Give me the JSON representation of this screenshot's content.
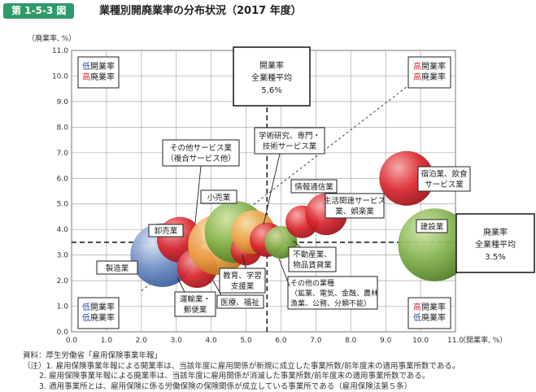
{
  "figure": {
    "number": "第 1-5-3 図",
    "title": "業種別開廃業率の分布状況（2017 年度）"
  },
  "colors": {
    "badge": "#2f9a6b",
    "grid": "#aaaaaa",
    "red": "#d9262d",
    "orange": "#eda64a",
    "green": "#7fb04a",
    "blue": "#6d8dc3",
    "quadrant_blue": "#1a4aa0",
    "quadrant_red": "#d7262c"
  },
  "chart_data": {
    "type": "scatter",
    "variant": "bubble",
    "xlabel": "（開業率, %）",
    "ylabel": "（廃業率, %）",
    "xlim": [
      0,
      11
    ],
    "ylim": [
      0,
      11
    ],
    "xticks": [
      "0.0",
      "1.0",
      "2.0",
      "3.0",
      "4.0",
      "5.0",
      "6.0",
      "7.0",
      "8.0",
      "9.0",
      "10.0",
      "11.0"
    ],
    "yticks": [
      "0.0",
      "1.0",
      "2.0",
      "3.0",
      "4.0",
      "5.0",
      "6.0",
      "7.0",
      "8.0",
      "9.0",
      "10.0",
      "11.0"
    ],
    "grid": true,
    "reference_lines": {
      "opening_avg": 5.6,
      "closing_avg": 3.5,
      "opening_label": [
        "開業率",
        "全業種平均",
        "5.6%"
      ],
      "closing_label": [
        "廃業率",
        "全業種平均",
        "3.5%"
      ]
    },
    "bubbles": [
      {
        "name": "製造業",
        "x": 2.6,
        "y": 3.0,
        "size": 7.0,
        "color": "blue"
      },
      {
        "name": "卸売業",
        "x": 3.1,
        "y": 3.6,
        "size": 5.0,
        "color": "red"
      },
      {
        "name": "運輸業・郵便業",
        "x": 3.6,
        "y": 2.5,
        "size": 4.4,
        "color": "red"
      },
      {
        "name": "医療、福祉",
        "x": 4.2,
        "y": 3.4,
        "size": 6.6,
        "color": "orange"
      },
      {
        "name": "小売業",
        "x": 4.7,
        "y": 3.9,
        "size": 6.8,
        "color": "green"
      },
      {
        "name": "教育、学習支援業",
        "x": 5.0,
        "y": 3.2,
        "size": 3.4,
        "color": "red"
      },
      {
        "name": "その他サービス業（複合サービス他）",
        "x": 5.2,
        "y": 3.9,
        "size": 4.8,
        "color": "orange"
      },
      {
        "name": "学術研究、専門・技術サービス業",
        "x": 5.6,
        "y": 3.6,
        "size": 3.8,
        "color": "red"
      },
      {
        "name": "不動産業、物品賃貸業",
        "x": 6.0,
        "y": 3.5,
        "size": 3.6,
        "color": "green"
      },
      {
        "name": "情報通信業",
        "x": 6.6,
        "y": 4.3,
        "size": 3.6,
        "color": "red"
      },
      {
        "name": "生活関連サービス業、娯楽業",
        "x": 7.3,
        "y": 4.6,
        "size": 4.6,
        "color": "red"
      },
      {
        "name": "宿泊業、飲食サービス業",
        "x": 9.6,
        "y": 6.0,
        "size": 6.0,
        "color": "red"
      },
      {
        "name": "建設業",
        "x": 10.4,
        "y": 3.4,
        "size": 8.0,
        "color": "green"
      }
    ],
    "bubble_labels": {
      "manufacturing": "製造業",
      "wholesale": [
        "卸売業"
      ],
      "transport": [
        "運輸業・",
        "郵便業"
      ],
      "medical": [
        "医療、福祉"
      ],
      "retail": [
        "小売業"
      ],
      "education": [
        "教育、学習",
        "支援業"
      ],
      "other_service": [
        "その他サービス業",
        "（複合サービス他）"
      ],
      "academic": [
        "学術研究、専門・",
        "技術サービス業"
      ],
      "realestate": [
        "不動産業、",
        "物品賃貸業"
      ],
      "info": [
        "情報通信業"
      ],
      "lifestyle": [
        "生活関連サービス",
        "業、娯楽業"
      ],
      "hotel": [
        "宿泊業、飲食",
        "サービス業"
      ],
      "construction": [
        "建設業"
      ],
      "other_industry": [
        "その他の業種",
        "（鉱業、電気、金融、農林",
        "漁業、公務、分類不能）"
      ]
    },
    "quadrants": {
      "top_left": [
        {
          "c": "低",
          "t": "開業率",
          "col": "quadrant_blue"
        },
        {
          "c": "高",
          "t": "廃業率",
          "col": "quadrant_red"
        }
      ],
      "top_right": [
        {
          "c": "高",
          "t": "開業率",
          "col": "quadrant_red"
        },
        {
          "c": "高",
          "t": "廃業率",
          "col": "quadrant_red"
        }
      ],
      "bottom_left": [
        {
          "c": "低",
          "t": "開業率",
          "col": "quadrant_blue"
        },
        {
          "c": "低",
          "t": "廃業率",
          "col": "quadrant_blue"
        }
      ],
      "bottom_right": [
        {
          "c": "高",
          "t": "開業率",
          "col": "quadrant_red"
        },
        {
          "c": "低",
          "t": "廃業率",
          "col": "quadrant_blue"
        }
      ]
    }
  },
  "notes": {
    "source": "資料：厚生労働省「雇用保険事業年報」",
    "note1": "（注）1. 雇用保険事業年報による開業率は、当該年度に雇用関係が新規に成立した事業所数/前年度末の適用事業所数である。",
    "note2": "2. 雇用保険事業年報による廃業率は、当該年度に雇用関係が消滅した事業所数/前年度末の適用事業所数である。",
    "note3": "3. 適用事業所とは、雇用保険に係る労働保険の保険関係が成立している事業所である（雇用保険法第５条）"
  }
}
